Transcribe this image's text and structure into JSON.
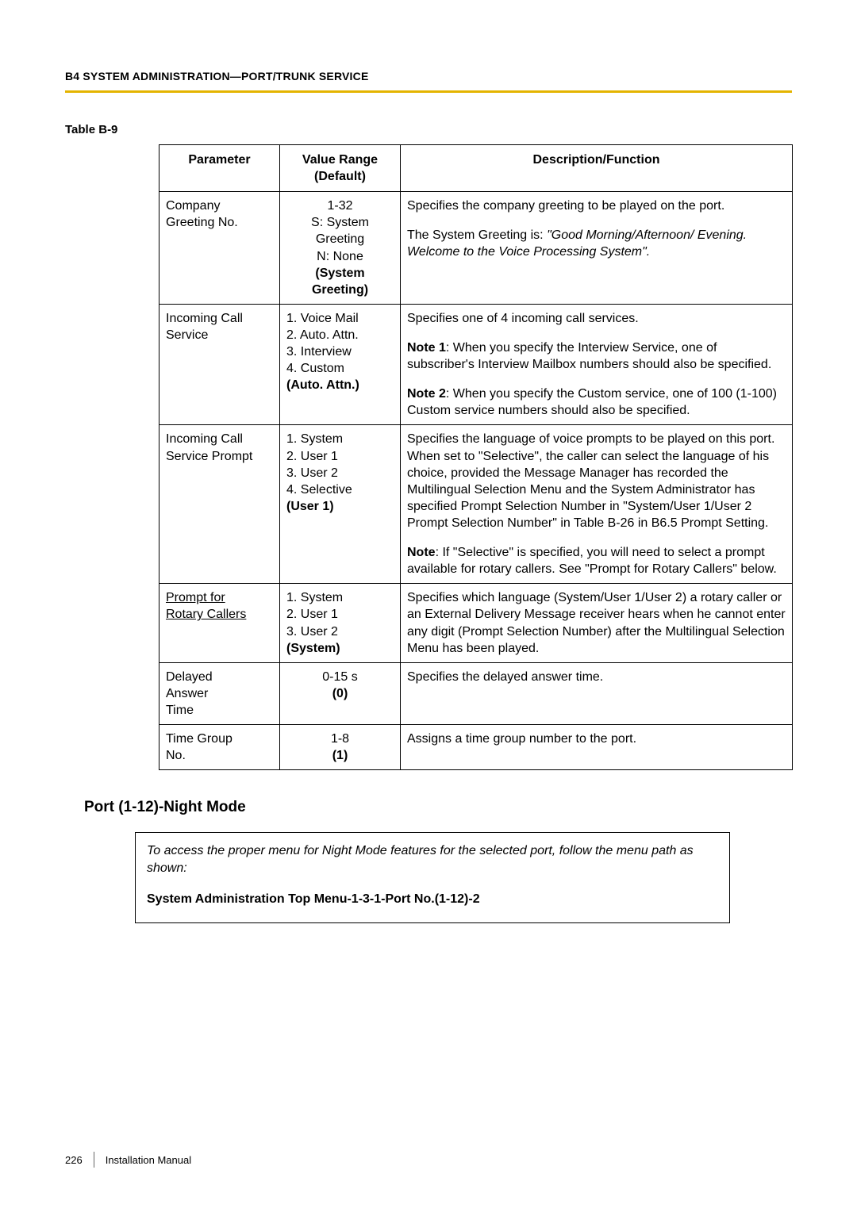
{
  "header": "B4 SYSTEM ADMINISTRATION—PORT/TRUNK SERVICE",
  "ruleColor": "#e4b400",
  "tableLabel": "Table B-9",
  "columns": {
    "c1": "Parameter",
    "c2_line1": "Value Range",
    "c2_line2": "(Default)",
    "c3": "Description/Function"
  },
  "rows": [
    {
      "param_l1": "Company",
      "param_l2": "Greeting No.",
      "val_l1": "1-32",
      "val_l2": "S: System",
      "val_l3": "Greeting",
      "val_l4": "N: None",
      "val_l5": "(System",
      "val_l6": "Greeting)",
      "desc_p1": "Specifies the company greeting to be played on the port.",
      "desc_p2a": "The System Greeting is: ",
      "desc_p2b": "\"Good Morning/Afternoon/ Evening. Welcome to the Voice Processing System\"."
    },
    {
      "param_l1": "Incoming Call",
      "param_l2": "Service",
      "val_l1": "1. Voice Mail",
      "val_l2": "2. Auto. Attn.",
      "val_l3": "3. Interview",
      "val_l4": "4. Custom",
      "val_l5": "(Auto. Attn.)",
      "desc_p1": "Specifies one of 4 incoming call services.",
      "desc_p2_label": "Note 1",
      "desc_p2": ": When you specify the Interview Service, one of subscriber's Interview Mailbox numbers should also be specified.",
      "desc_p3_label": "Note 2",
      "desc_p3": ": When you specify the Custom service, one of 100 (1-100) Custom service numbers should also be specified."
    },
    {
      "param_l1": "Incoming Call",
      "param_l2": "Service Prompt",
      "val_l1": "1. System",
      "val_l2": "2. User 1",
      "val_l3": "3. User 2",
      "val_l4": "4. Selective",
      "val_l5": "(User 1)",
      "desc_p1": "Specifies the language of voice prompts to be played on this port. When set to \"Selective\", the caller can select the language of his choice, provided the Message Manager has recorded the Multilingual Selection Menu and the System Administrator has specified Prompt Selection Number in \"System/User 1/User 2 Prompt Selection Number\" in Table B-26 in B6.5 Prompt Setting.",
      "desc_p2_label": "Note",
      "desc_p2": ": If \"Selective\" is specified, you will need to select a prompt available for rotary callers. See \"Prompt for Rotary Callers\" below."
    },
    {
      "param_l1": "Prompt for",
      "param_l2": "Rotary Callers",
      "val_l1": "1. System",
      "val_l2": "2. User 1",
      "val_l3": "3. User 2",
      "val_l4": "(System)",
      "desc_p1": "Specifies which language (System/User 1/User 2) a rotary caller or an External Delivery Message receiver hears when he cannot enter any digit (Prompt Selection Number) after the Multilingual Selection Menu has been played."
    },
    {
      "param_l1": "Delayed",
      "param_l2": "Answer",
      "param_l3": "Time",
      "val_l1": "0-15 s",
      "val_l2": "(0)",
      "desc_p1": "Specifies the delayed answer time."
    },
    {
      "param_l1": "Time Group",
      "param_l2": "No.",
      "val_l1": "1-8",
      "val_l2": "(1)",
      "desc_p1": "Assigns a time group number to the port."
    }
  ],
  "sectionHeading": "Port (1-12)-Night Mode",
  "noteBox": {
    "italicLine": "To access the proper menu for Night Mode features for the selected port, follow the menu path as shown:",
    "boldLine": "System Administration Top Menu-1-3-1-Port No.(1-12)-2"
  },
  "footer": {
    "page": "226",
    "label": "Installation Manual"
  }
}
